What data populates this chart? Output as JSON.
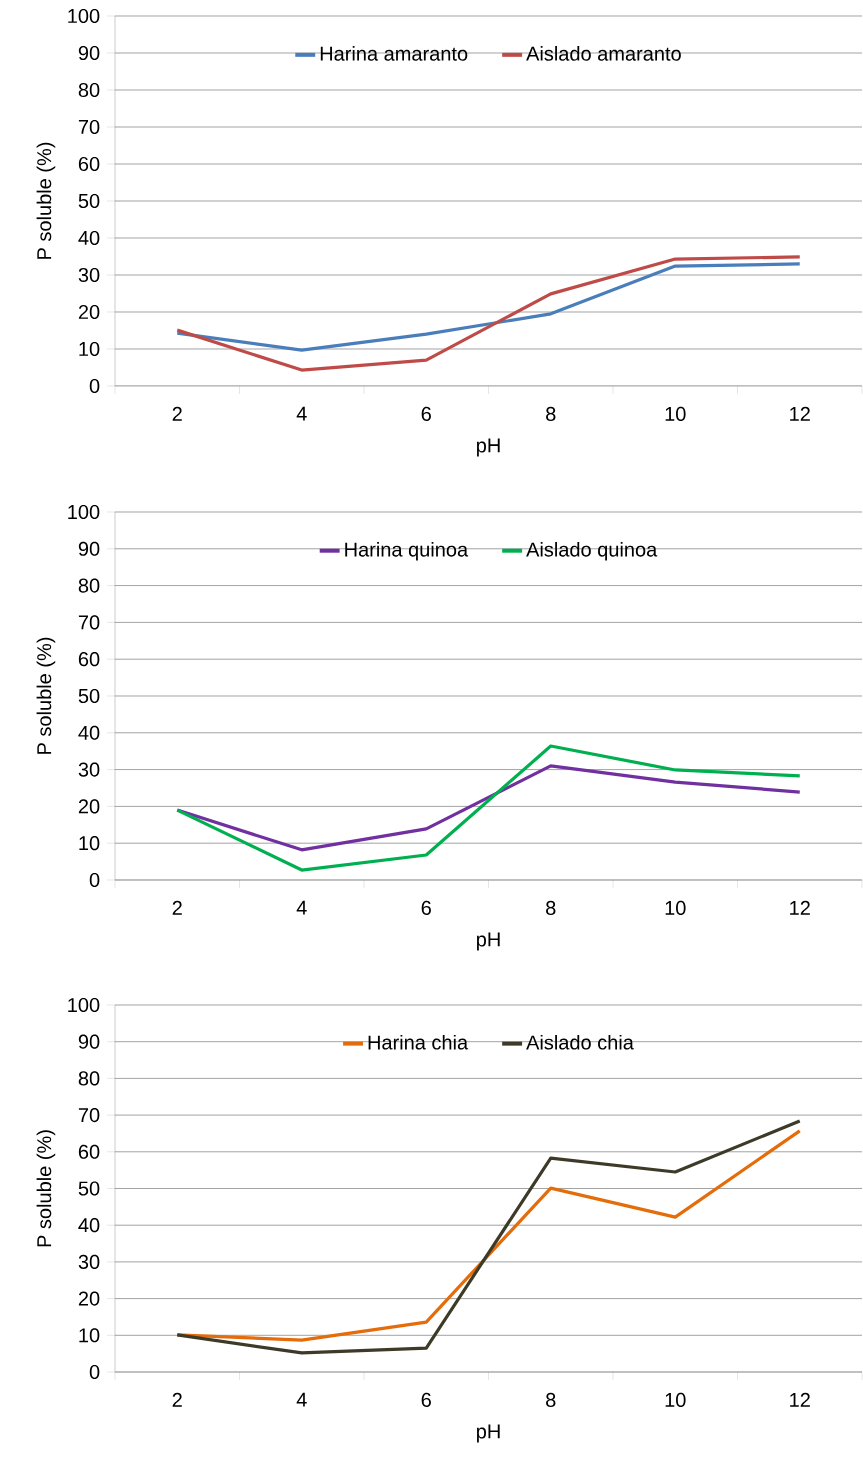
{
  "chart_data": [
    {
      "type": "line",
      "xlabel": "pH",
      "ylabel": "P soluble (%)",
      "categories": [
        "2",
        "4",
        "6",
        "8",
        "10",
        "12"
      ],
      "ylim": [
        0,
        100
      ],
      "yticks": [
        0,
        10,
        20,
        30,
        40,
        50,
        60,
        70,
        80,
        90,
        100
      ],
      "grid": "y",
      "legend": "top",
      "series": [
        {
          "name": "Harina amaranto",
          "color": "#4a7ebb",
          "values": [
            14.3,
            9.7,
            14,
            19.5,
            32.4,
            33
          ]
        },
        {
          "name": "Aislado amaranto",
          "color": "#be4b48",
          "values": [
            15.1,
            4.3,
            7,
            24.9,
            34.3,
            34.9
          ]
        }
      ]
    },
    {
      "type": "line",
      "xlabel": "pH",
      "ylabel": "P soluble (%)",
      "categories": [
        "2",
        "4",
        "6",
        "8",
        "10",
        "12"
      ],
      "ylim": [
        0,
        100
      ],
      "yticks": [
        0,
        10,
        20,
        30,
        40,
        50,
        60,
        70,
        80,
        90,
        100
      ],
      "grid": "y",
      "legend": "top",
      "series": [
        {
          "name": "Harina quinoa",
          "color": "#7030a0",
          "values": [
            19,
            8.2,
            13.9,
            31,
            26.6,
            23.9
          ]
        },
        {
          "name": "Aislado quinoa",
          "color": "#00b050",
          "values": [
            19,
            2.7,
            6.8,
            36.4,
            29.9,
            28.3
          ]
        }
      ]
    },
    {
      "type": "line",
      "xlabel": "pH",
      "ylabel": "P soluble (%)",
      "categories": [
        "2",
        "4",
        "6",
        "8",
        "10",
        "12"
      ],
      "ylim": [
        0,
        100
      ],
      "yticks": [
        0,
        10,
        20,
        30,
        40,
        50,
        60,
        70,
        80,
        90,
        100
      ],
      "grid": "y",
      "legend": "top",
      "series": [
        {
          "name": "Harina chia",
          "color": "#e46c0a",
          "values": [
            10.1,
            8.7,
            13.6,
            50.1,
            42.2,
            65.7
          ]
        },
        {
          "name": "Aislado chia",
          "color": "#3d3a28",
          "values": [
            10.1,
            5.2,
            6.5,
            58.3,
            54.5,
            68.4
          ]
        }
      ]
    }
  ]
}
